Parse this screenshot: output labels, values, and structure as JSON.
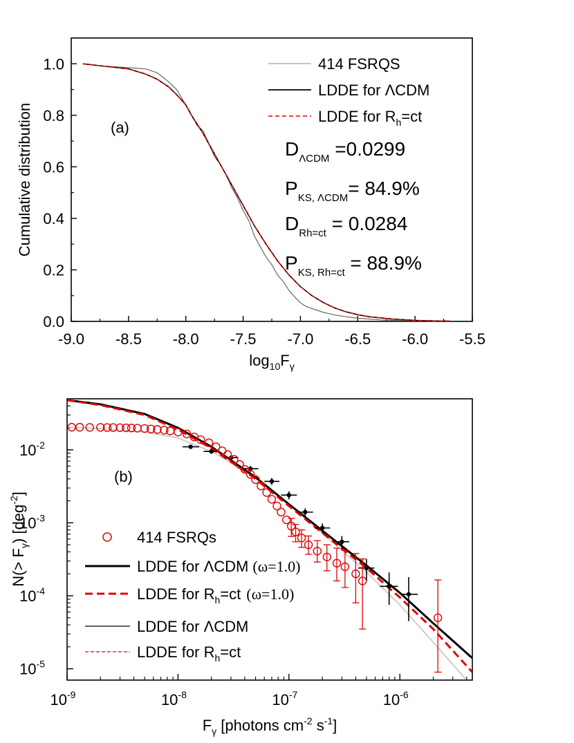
{
  "chart_data": [
    {
      "panel_label": "(a)",
      "type": "line",
      "xlabel": {
        "text": "log",
        "sub": "10",
        "var": "F",
        "var_sub": "γ"
      },
      "ylabel": "Cumulative distribution",
      "xlim": [
        -9.0,
        -5.5
      ],
      "ylim": [
        0.0,
        1.1
      ],
      "xticks": [
        "-9.0",
        "-8.5",
        "-8.0",
        "-7.5",
        "-7.0",
        "-6.5",
        "-6.0",
        "-5.5"
      ],
      "xtick_values": [
        -9.0,
        -8.5,
        -8.0,
        -7.5,
        -7.0,
        -6.5,
        -6.0,
        -5.5
      ],
      "yticks": [
        "0.0",
        "0.2",
        "0.4",
        "0.6",
        "0.8",
        "1.0"
      ],
      "ytick_values": [
        0.0,
        0.2,
        0.4,
        0.6,
        0.8,
        1.0
      ],
      "legend_placement": "top-right",
      "legend": [
        {
          "label": "414 FSRQS",
          "style": "thin-gray"
        },
        {
          "label": "LDDE for ΛCDM",
          "style": "solid-black"
        },
        {
          "label": "LDDE for R",
          "sub": "h",
          "suffix": "=ct",
          "style": "dashed-red"
        }
      ],
      "annotations": [
        {
          "main": "D",
          "sub": "ΛCDM",
          "rest": " =0.0299"
        },
        {
          "main": "P",
          "sub": "KS, ΛCDM",
          "rest": "= 84.9%"
        },
        {
          "main": "D",
          "sub": "Rh=ct",
          "rest": " = 0.0284"
        },
        {
          "main": "P",
          "sub": "KS, Rh=ct",
          "rest": " = 88.9%"
        }
      ],
      "series": [
        {
          "name": "414 FSRQS",
          "x": [
            -8.88,
            -8.7,
            -8.5,
            -8.35,
            -8.25,
            -8.15,
            -8.08,
            -8.0,
            -7.95,
            -7.9,
            -7.85,
            -7.8,
            -7.75,
            -7.7,
            -7.65,
            -7.6,
            -7.55,
            -7.5,
            -7.45,
            -7.4,
            -7.35,
            -7.3,
            -7.25,
            -7.2,
            -7.15,
            -7.1,
            -7.05,
            -7.0,
            -6.95,
            -6.9,
            -6.85,
            -6.8,
            -6.75,
            -6.7,
            -6.6,
            -6.5,
            -6.4,
            -6.3,
            -6.2,
            -6.0,
            -5.9,
            -5.8
          ],
          "y": [
            1.0,
            0.99,
            0.985,
            0.98,
            0.965,
            0.93,
            0.9,
            0.84,
            0.8,
            0.76,
            0.74,
            0.69,
            0.64,
            0.61,
            0.57,
            0.52,
            0.48,
            0.43,
            0.39,
            0.33,
            0.29,
            0.25,
            0.22,
            0.18,
            0.155,
            0.12,
            0.095,
            0.072,
            0.058,
            0.05,
            0.043,
            0.035,
            0.03,
            0.025,
            0.018,
            0.012,
            0.009,
            0.006,
            0.004,
            0.002,
            0.0015,
            0.0
          ]
        },
        {
          "name": "LDDE for ΛCDM",
          "x": [
            -8.9,
            -8.7,
            -8.5,
            -8.35,
            -8.25,
            -8.15,
            -8.08,
            -8.0,
            -7.95,
            -7.9,
            -7.85,
            -7.8,
            -7.75,
            -7.7,
            -7.6,
            -7.5,
            -7.4,
            -7.3,
            -7.2,
            -7.1,
            -7.0,
            -6.9,
            -6.8,
            -6.7,
            -6.6,
            -6.5,
            -6.4,
            -6.2,
            -6.0,
            -5.8,
            -5.7
          ],
          "y": [
            1.0,
            0.99,
            0.98,
            0.96,
            0.94,
            0.91,
            0.88,
            0.84,
            0.8,
            0.765,
            0.73,
            0.69,
            0.65,
            0.61,
            0.53,
            0.45,
            0.37,
            0.3,
            0.235,
            0.18,
            0.135,
            0.1,
            0.073,
            0.052,
            0.037,
            0.026,
            0.018,
            0.009,
            0.004,
            0.0015,
            0.001
          ]
        },
        {
          "name": "LDDE for Rh=ct",
          "x": [
            -8.9,
            -8.7,
            -8.5,
            -8.35,
            -8.25,
            -8.15,
            -8.08,
            -8.0,
            -7.95,
            -7.9,
            -7.85,
            -7.8,
            -7.75,
            -7.7,
            -7.6,
            -7.5,
            -7.4,
            -7.3,
            -7.2,
            -7.1,
            -7.0,
            -6.9,
            -6.8,
            -6.7,
            -6.6,
            -6.5,
            -6.4,
            -6.2,
            -6.0,
            -5.8,
            -5.7
          ],
          "y": [
            1.0,
            0.99,
            0.98,
            0.96,
            0.94,
            0.91,
            0.88,
            0.84,
            0.8,
            0.765,
            0.73,
            0.69,
            0.65,
            0.61,
            0.53,
            0.45,
            0.37,
            0.3,
            0.235,
            0.18,
            0.135,
            0.1,
            0.073,
            0.052,
            0.037,
            0.026,
            0.018,
            0.009,
            0.004,
            0.0015,
            0.001
          ]
        }
      ]
    },
    {
      "panel_label": "(b)",
      "type": "line",
      "xscale": "log",
      "yscale": "log",
      "xlabel": {
        "var": "F",
        "var_sub": "γ",
        "text": " [photons cm",
        "sup1": "-2",
        "mid": " s",
        "sup2": "-1",
        "end": "]"
      },
      "ylabel": {
        "text": "N(> F",
        "sub": "γ",
        "mid": ") [deg",
        "sup": "-2",
        "end": "]"
      },
      "xlim": [
        1e-09,
        4.5e-06
      ],
      "ylim": [
        7e-06,
        0.05
      ],
      "xticks": [
        {
          "base": "10",
          "exp": "-9",
          "value": 1e-09
        },
        {
          "base": "10",
          "exp": "-8",
          "value": 1e-08
        },
        {
          "base": "10",
          "exp": "-7",
          "value": 1e-07
        },
        {
          "base": "10",
          "exp": "-6",
          "value": 1e-06
        }
      ],
      "yticks": [
        {
          "base": "10",
          "exp": "-5",
          "value": 1e-05
        },
        {
          "base": "10",
          "exp": "-4",
          "value": 0.0001
        },
        {
          "base": "10",
          "exp": "-3",
          "value": 0.001
        },
        {
          "base": "10",
          "exp": "-2",
          "value": 0.01
        }
      ],
      "legend_placement": "bottom-left",
      "legend": [
        {
          "label": "414 FSRQs",
          "style": "red-open-circle"
        },
        {
          "label": "LDDE for ΛCDM",
          "extra": "(ω=1.0)",
          "style": "thick-black"
        },
        {
          "label": "LDDE for R",
          "sub": "h",
          "suffix": "=ct",
          "extra": "(ω=1.0)",
          "style": "thick-dashed-red"
        },
        {
          "label": "LDDE for ΛCDM",
          "style": "thin-black"
        },
        {
          "label": "LDDE for R",
          "sub": "h",
          "suffix": "=ct",
          "style": "thin-dashed-red"
        }
      ],
      "series": [
        {
          "name": "LDDE for ΛCDM (ω=1.0)",
          "x": [
            1e-09,
            2e-09,
            5e-09,
            1e-08,
            2e-08,
            5e-08,
            1e-07,
            2e-07,
            5e-07,
            1e-06,
            2e-06,
            4.5e-06
          ],
          "y": [
            0.048,
            0.042,
            0.031,
            0.02,
            0.011,
            0.0042,
            0.0018,
            0.00078,
            0.00026,
            0.00011,
            4.2e-05,
            1.4e-05
          ]
        },
        {
          "name": "LDDE for Rh=ct (ω=1.0)",
          "x": [
            1e-09,
            2e-09,
            5e-09,
            1e-08,
            2e-08,
            5e-08,
            1e-07,
            2e-07,
            5e-07,
            1e-06,
            2e-06,
            4.5e-06
          ],
          "y": [
            0.048,
            0.041,
            0.03,
            0.019,
            0.0105,
            0.004,
            0.0017,
            0.00073,
            0.00024,
            9.5e-05,
            3.5e-05,
            9e-06
          ]
        },
        {
          "name": "LDDE for ΛCDM",
          "x": [
            1e-09,
            2e-09,
            5e-09,
            1e-08,
            2e-08,
            5e-08,
            1e-07,
            2e-07,
            5e-07,
            1e-06,
            2e-06,
            4e-06
          ],
          "y": [
            0.0205,
            0.0195,
            0.0175,
            0.0145,
            0.0095,
            0.0043,
            0.0018,
            0.00072,
            0.00021,
            7.5e-05,
            2.3e-05,
            7e-06
          ]
        },
        {
          "name": "LDDE for Rh=ct",
          "x": [
            1e-09,
            2e-09,
            5e-09,
            1e-08,
            2e-08,
            5e-08,
            1e-07,
            2e-07,
            5e-07,
            1e-06,
            2e-06,
            4e-06
          ],
          "y": [
            0.0205,
            0.0195,
            0.0175,
            0.0145,
            0.0095,
            0.0043,
            0.0018,
            0.00072,
            0.00021,
            7.5e-05,
            2.3e-05,
            7e-06
          ]
        }
      ],
      "fsrq_points": {
        "name": "414 FSRQs",
        "x": [
          1.1e-09,
          1.3e-09,
          1.6e-09,
          2e-09,
          2.3e-09,
          2.6e-09,
          3e-09,
          3.4e-09,
          3.8e-09,
          4.3e-09,
          5e-09,
          5.7e-09,
          6.5e-09,
          7.5e-09,
          8.5e-09,
          1e-08,
          1.2e-08,
          1.4e-08,
          1.6e-08,
          1.9e-08,
          2.2e-08,
          2.5e-08,
          2.8e-08,
          3.2e-08,
          3.6e-08,
          4e-08,
          4.5e-08,
          5e-08,
          5.6e-08,
          6.3e-08,
          7e-08,
          7.8e-08,
          8.5e-08,
          9.5e-08,
          1.05e-07,
          1.15e-07,
          1.3e-07,
          1.5e-07,
          1.8e-07,
          2.2e-07,
          2.7e-07,
          3.2e-07,
          4e-07,
          4.6e-07,
          2.2e-06
        ],
        "y": [
          0.0204,
          0.0204,
          0.0203,
          0.0203,
          0.0202,
          0.0202,
          0.0201,
          0.02,
          0.0199,
          0.0198,
          0.0196,
          0.0193,
          0.019,
          0.0186,
          0.0181,
          0.0175,
          0.0165,
          0.015,
          0.0138,
          0.0125,
          0.011,
          0.0097,
          0.0086,
          0.0074,
          0.0063,
          0.0054,
          0.0046,
          0.0039,
          0.0032,
          0.0026,
          0.0021,
          0.0017,
          0.0014,
          0.0011,
          0.0009,
          0.00075,
          0.00062,
          0.0005,
          0.00041,
          0.00034,
          0.00028,
          0.00025,
          0.0002,
          0.00016,
          5e-05
        ],
        "err_lo": [
          null,
          null,
          null,
          null,
          null,
          null,
          null,
          null,
          null,
          null,
          null,
          null,
          null,
          null,
          null,
          null,
          null,
          null,
          null,
          null,
          null,
          null,
          null,
          null,
          null,
          null,
          null,
          null,
          null,
          null,
          null,
          null,
          null,
          null,
          0.00065,
          0.00055,
          0.00046,
          0.00037,
          0.00029,
          0.00022,
          0.00016,
          0.00013,
          8e-05,
          3.5e-05,
          9e-06
        ],
        "err_hi": [
          null,
          null,
          null,
          null,
          null,
          null,
          null,
          null,
          null,
          null,
          null,
          null,
          null,
          null,
          null,
          null,
          null,
          null,
          null,
          null,
          null,
          null,
          null,
          null,
          null,
          null,
          null,
          null,
          null,
          null,
          null,
          null,
          null,
          null,
          0.00115,
          0.00095,
          0.0008,
          0.00066,
          0.00057,
          0.0005,
          0.00045,
          0.00042,
          0.00038,
          0.00032,
          0.000165
        ]
      },
      "reference_points": {
        "x": [
          1.3e-08,
          2e-08,
          3e-08,
          4.5e-08,
          7e-08,
          1e-07,
          1.4e-07,
          2e-07,
          3e-07,
          5e-07,
          8e-07,
          1.2e-06
        ],
        "y": [
          0.011,
          0.0095,
          0.0078,
          0.0055,
          0.0037,
          0.0024,
          0.0014,
          0.00085,
          0.00055,
          0.00024,
          0.000135,
          0.000105
        ],
        "x_lo": [
          1.1e-08,
          1.7e-08,
          2.6e-08,
          3.9e-08,
          6e-08,
          8.5e-08,
          1.2e-07,
          1.7e-07,
          2.6e-07,
          4.2e-07,
          6.6e-07,
          1e-06
        ],
        "x_hi": [
          1.55e-08,
          2.35e-08,
          3.5e-08,
          5.3e-08,
          8.2e-08,
          1.18e-07,
          1.65e-07,
          2.35e-07,
          3.5e-07,
          5.9e-07,
          9.6e-07,
          1.45e-06
        ],
        "y_lo": [
          0.0103,
          0.0088,
          0.0072,
          0.005,
          0.0033,
          0.0021,
          0.00122,
          0.00072,
          0.00044,
          0.00016,
          7.5e-05,
          4.5e-05
        ],
        "y_hi": [
          0.0117,
          0.0102,
          0.0084,
          0.006,
          0.0041,
          0.0027,
          0.00158,
          0.00098,
          0.00066,
          0.00032,
          0.00021,
          0.00018
        ]
      }
    }
  ]
}
